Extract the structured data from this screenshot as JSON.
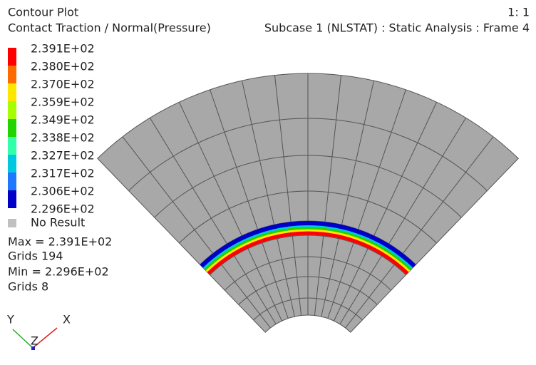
{
  "header": {
    "title": "Contour Plot",
    "subtitle": "Contact Traction / Normal(Pressure)",
    "scale": "1: 1",
    "subcase": "Subcase 1 (NLSTAT) : Static Analysis : Frame 4"
  },
  "legend": {
    "labels": [
      "2.391E+02",
      "2.380E+02",
      "2.370E+02",
      "2.359E+02",
      "2.349E+02",
      "2.338E+02",
      "2.327E+02",
      "2.317E+02",
      "2.306E+02",
      "2.296E+02"
    ],
    "colors": [
      "#ff0000",
      "#ff6a00",
      "#ffe600",
      "#a6ff00",
      "#21d400",
      "#33ffaa",
      "#00c8e0",
      "#1e78ff",
      "#0000c8"
    ],
    "no_result": "No Result",
    "no_result_color": "#c0c0c0"
  },
  "stats": {
    "max": "Max = 2.391E+02",
    "max_grid": "Grids 194",
    "min": "Min = 2.296E+02",
    "min_grid": "Grids 8"
  },
  "triad": {
    "y": "Y",
    "x": "X",
    "z": "Z"
  }
}
